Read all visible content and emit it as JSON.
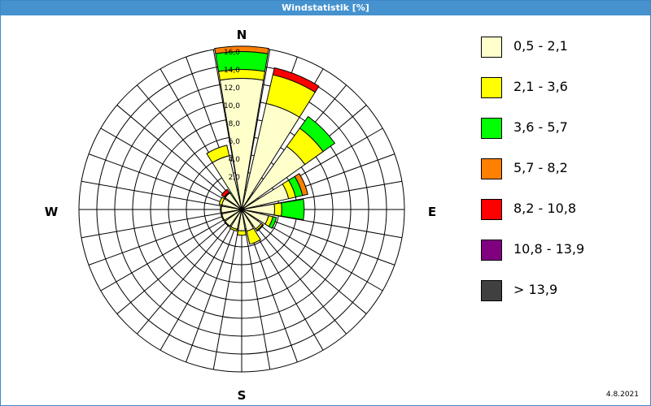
{
  "window": {
    "title": "Windstatistik [%]"
  },
  "footer": {
    "date": "4.8.2021"
  },
  "chart_data": {
    "type": "polar-stacked-bar",
    "title": "Windstatistik [%]",
    "directions": [
      "N",
      "NNE",
      "NE",
      "ENE",
      "E",
      "ESE",
      "SE",
      "SSE",
      "S",
      "SSW",
      "SW",
      "WSW",
      "W",
      "WNW",
      "NW",
      "NNW"
    ],
    "compass_labels": [
      "N",
      "E",
      "S",
      "W"
    ],
    "radial_ticks": [
      "0",
      "2,0",
      "4,0",
      "6,0",
      "8,0",
      "10,0",
      "12,0",
      "14,0",
      "16,0"
    ],
    "rlim": [
      0,
      16
    ],
    "grid": true,
    "legend_position": "right",
    "series": [
      {
        "name": "0,5 - 2,1",
        "color": "#ffffcc",
        "values": [
          12.5,
          10.0,
          6.5,
          3.2,
          1.5,
          0.9,
          0.5,
          0.3,
          0.2,
          0.1,
          0.1,
          0.1,
          0.1,
          0.1,
          0.1,
          4.0
        ]
      },
      {
        "name": "2,1 - 3,6",
        "color": "#ffff00",
        "values": [
          1.0,
          3.3,
          2.5,
          0.8,
          0.8,
          0.5,
          0.2,
          1.5,
          0.5,
          0.2,
          0.1,
          0.1,
          0.1,
          0.3,
          0.1,
          1.2
        ]
      },
      {
        "name": "3,6 - 5,7",
        "color": "#00ff00",
        "values": [
          2.0,
          0.0,
          1.6,
          0.8,
          2.5,
          0.4,
          0.1,
          0.0,
          0.0,
          0.0,
          0.0,
          0.0,
          0.0,
          0.0,
          0.0,
          0.0
        ]
      },
      {
        "name": "5,7 - 8,2",
        "color": "#ff8000",
        "values": [
          0.6,
          0.0,
          0.0,
          0.6,
          0.0,
          0.0,
          0.0,
          0.0,
          0.0,
          0.0,
          0.0,
          0.0,
          0.0,
          0.0,
          0.0,
          0.0
        ]
      },
      {
        "name": "8,2 - 10,8",
        "color": "#ff0000",
        "values": [
          0.0,
          0.8,
          0.0,
          0.0,
          0.0,
          0.0,
          0.0,
          0.0,
          0.0,
          0.0,
          0.0,
          0.0,
          0.0,
          0.0,
          0.4,
          0.0
        ]
      },
      {
        "name": "10,8 - 13,9",
        "color": "#800080",
        "values": [
          0,
          0,
          0,
          0,
          0,
          0,
          0,
          0,
          0,
          0,
          0,
          0,
          0,
          0,
          0,
          0
        ]
      },
      {
        "name": "> 13,9",
        "color": "#404040",
        "values": [
          0,
          0,
          0,
          0,
          0,
          0,
          0,
          0,
          0,
          0,
          0,
          0,
          0,
          0,
          0,
          0
        ]
      }
    ]
  }
}
